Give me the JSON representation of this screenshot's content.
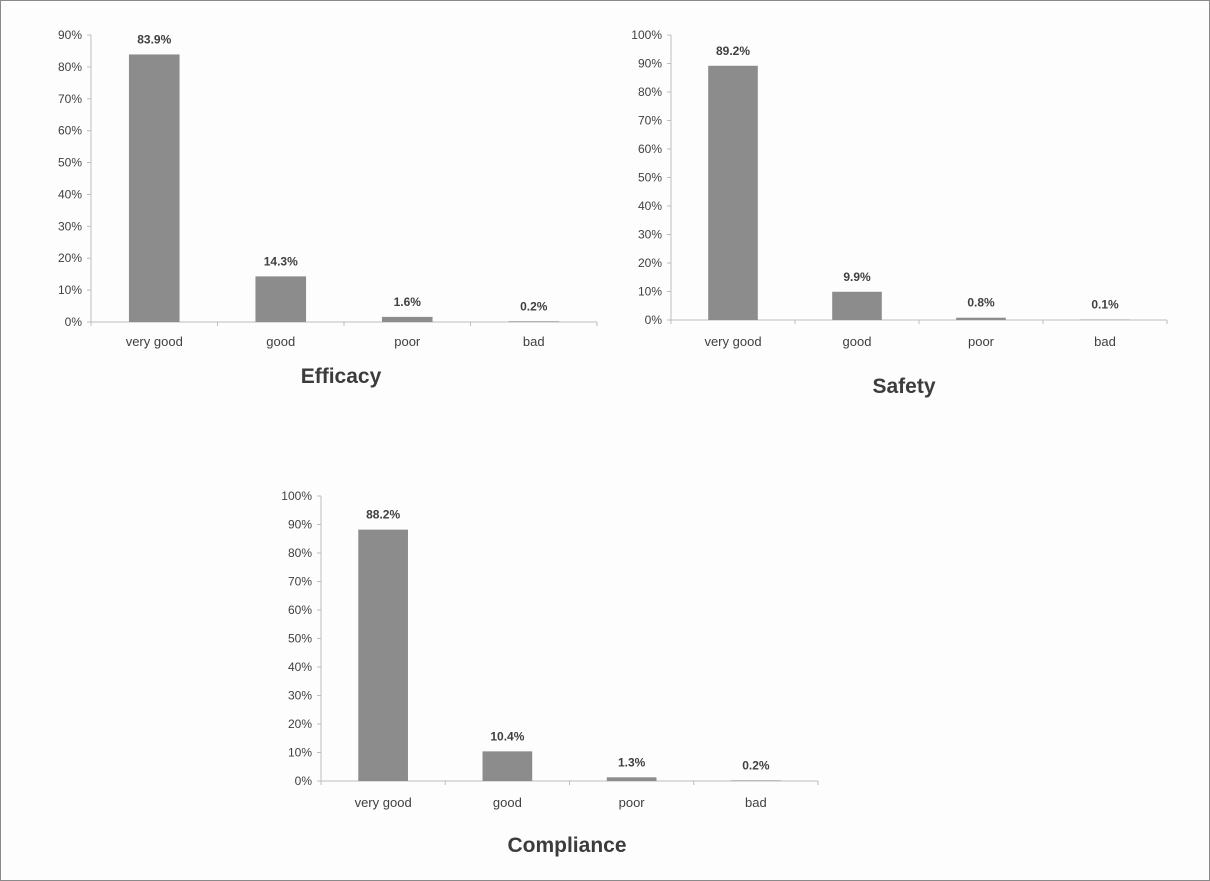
{
  "bar_color": "#8c8c8c",
  "chart_data": [
    {
      "type": "bar",
      "title": "Efficacy",
      "categories": [
        "very good",
        "good",
        "poor",
        "bad"
      ],
      "values": [
        83.9,
        14.3,
        1.6,
        0.2
      ],
      "value_labels": [
        "83.9%",
        "14.3%",
        "1.6%",
        "0.2%"
      ],
      "ylim": [
        0,
        90
      ],
      "yticks": [
        "0%",
        "10%",
        "20%",
        "30%",
        "40%",
        "50%",
        "60%",
        "70%",
        "80%",
        "90%"
      ],
      "xlabel": "",
      "ylabel": "",
      "grid": false,
      "legend": "none"
    },
    {
      "type": "bar",
      "title": "Safety",
      "categories": [
        "very good",
        "good",
        "poor",
        "bad"
      ],
      "values": [
        89.2,
        9.9,
        0.8,
        0.1
      ],
      "value_labels": [
        "89.2%",
        "9.9%",
        "0.8%",
        "0.1%"
      ],
      "ylim": [
        0,
        100
      ],
      "yticks": [
        "0%",
        "10%",
        "20%",
        "30%",
        "40%",
        "50%",
        "60%",
        "70%",
        "80%",
        "90%",
        "100%"
      ],
      "xlabel": "",
      "ylabel": "",
      "grid": false,
      "legend": "none"
    },
    {
      "type": "bar",
      "title": "Compliance",
      "categories": [
        "very good",
        "good",
        "poor",
        "bad"
      ],
      "values": [
        88.2,
        10.4,
        1.3,
        0.2
      ],
      "value_labels": [
        "88.2%",
        "10.4%",
        "1.3%",
        "0.2%"
      ],
      "ylim": [
        0,
        100
      ],
      "yticks": [
        "0%",
        "10%",
        "20%",
        "30%",
        "40%",
        "50%",
        "60%",
        "70%",
        "80%",
        "90%",
        "100%"
      ],
      "xlabel": "",
      "ylabel": "",
      "grid": false,
      "legend": "none"
    }
  ]
}
